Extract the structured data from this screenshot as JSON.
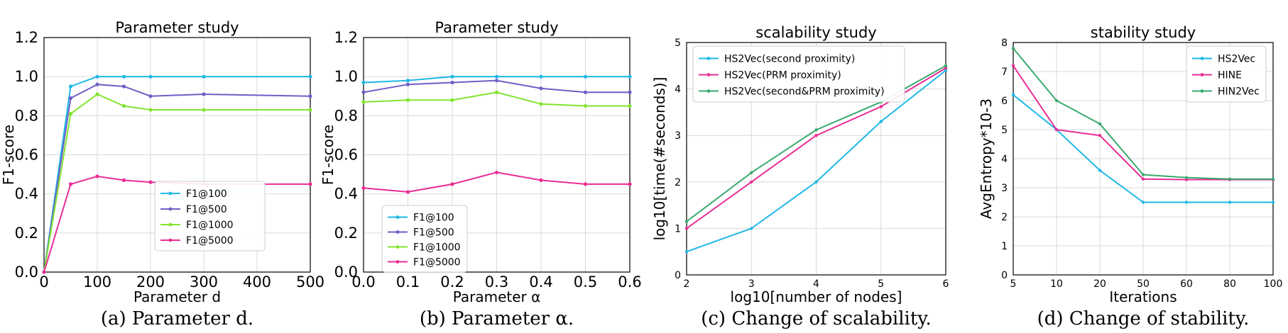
{
  "chart_data": [
    {
      "type": "line",
      "title": "Parameter  study",
      "xlabel": "Parameter d",
      "ylabel": "F1-score",
      "caption": "(a)  Parameter d.",
      "x": [
        0,
        50,
        100,
        150,
        200,
        300,
        500
      ],
      "xticks": [
        "0",
        "100",
        "200",
        "300",
        "400",
        "500"
      ],
      "xtick_values": [
        0,
        100,
        200,
        300,
        400,
        500
      ],
      "yticks": [
        "0.0",
        "0.2",
        "0.4",
        "0.6",
        "0.8",
        "1.0",
        "1.2"
      ],
      "yrange": [
        0,
        1.2
      ],
      "xrange": [
        0,
        500
      ],
      "log_y": false,
      "legend": "lower-center",
      "series": [
        {
          "name": "F1@100",
          "color": "#1fb8e6",
          "values": [
            0.0,
            0.95,
            1.0,
            1.0,
            1.0,
            1.0,
            1.0
          ]
        },
        {
          "name": "F1@500",
          "color": "#6f5fc7",
          "values": [
            0.0,
            0.89,
            0.96,
            0.95,
            0.9,
            0.91,
            0.9
          ]
        },
        {
          "name": "F1@1000",
          "color": "#80e52e",
          "values": [
            0.0,
            0.81,
            0.91,
            0.85,
            0.83,
            0.83,
            0.83
          ]
        },
        {
          "name": "F1@5000",
          "color": "#ea2d95",
          "values": [
            0.0,
            0.45,
            0.49,
            0.47,
            0.46,
            0.45,
            0.45
          ]
        }
      ]
    },
    {
      "type": "line",
      "title": "Parameter  study",
      "xlabel": "Parameter α",
      "ylabel": "F1-score",
      "caption": "(b)  Parameter α.",
      "x": [
        0.0,
        0.1,
        0.2,
        0.3,
        0.4,
        0.5,
        0.6
      ],
      "xticks": [
        "0.0",
        "0.1",
        "0.2",
        "0.3",
        "0.4",
        "0.5",
        "0.6"
      ],
      "xtick_values": [
        0.0,
        0.1,
        0.2,
        0.3,
        0.4,
        0.5,
        0.6
      ],
      "yticks": [
        "0.0",
        "0.2",
        "0.4",
        "0.6",
        "0.8",
        "1.0",
        "1.2"
      ],
      "yrange": [
        0,
        1.2
      ],
      "xrange": [
        0,
        0.6
      ],
      "log_y": false,
      "legend": "lower-left",
      "series": [
        {
          "name": "F1@100",
          "color": "#1fb8e6",
          "values": [
            0.97,
            0.98,
            1.0,
            1.0,
            1.0,
            1.0,
            1.0
          ]
        },
        {
          "name": "F1@500",
          "color": "#6f5fc7",
          "values": [
            0.92,
            0.96,
            0.97,
            0.98,
            0.94,
            0.92,
            0.92
          ]
        },
        {
          "name": "F1@1000",
          "color": "#80e52e",
          "values": [
            0.87,
            0.88,
            0.88,
            0.92,
            0.86,
            0.85,
            0.85
          ]
        },
        {
          "name": "F1@5000",
          "color": "#ea2d95",
          "values": [
            0.43,
            0.41,
            0.45,
            0.51,
            0.47,
            0.45,
            0.45
          ]
        }
      ]
    },
    {
      "type": "line",
      "title": "scalability study",
      "xlabel": "log10[number of nodes]",
      "ylabel": "log10[time(#seconds)]",
      "caption": "(c)  Change of scalability.",
      "x": [
        2,
        3,
        4,
        5,
        6
      ],
      "xticks": [
        "2",
        "3",
        "4",
        "5",
        "6"
      ],
      "xtick_values": [
        2,
        3,
        4,
        5,
        6
      ],
      "yticks": [
        "0",
        "1",
        "2",
        "3",
        "4",
        "5"
      ],
      "yrange": [
        0,
        5
      ],
      "xrange": [
        2,
        6
      ],
      "log_y": false,
      "legend": "upper-left",
      "series": [
        {
          "name": "HS2Vec(second proximity)",
          "color": "#1fb8e6",
          "values": [
            0.5,
            1.0,
            2.0,
            3.3,
            4.4
          ]
        },
        {
          "name": "HS2Vec(PRM proximity)",
          "color": "#ea2d95",
          "values": [
            1.0,
            2.0,
            3.0,
            3.62,
            4.45
          ]
        },
        {
          "name": "HS2Vec(second&PRM proximity)",
          "color": "#3aaa6e",
          "values": [
            1.15,
            2.2,
            3.12,
            3.72,
            4.5
          ]
        }
      ]
    },
    {
      "type": "line",
      "title": "stability study",
      "xlabel": "Iterations",
      "ylabel": "AvgEntropy*10-3",
      "caption": "(d)  Change of stability.",
      "x": [
        "5",
        "10",
        "20",
        "50",
        "60",
        "80",
        "100"
      ],
      "xticks": [
        "5",
        "10",
        "20",
        "50",
        "60",
        "80",
        "100"
      ],
      "yticks": [
        "0",
        "1",
        "2",
        "3",
        "4",
        "5",
        "6",
        "7",
        "8"
      ],
      "yrange": [
        0,
        8
      ],
      "log_y": false,
      "legend": "upper-right",
      "series": [
        {
          "name": "HS2Vec",
          "color": "#1fb8e6",
          "values": [
            6.2,
            5.0,
            3.6,
            2.5,
            2.5,
            2.5,
            2.5
          ]
        },
        {
          "name": "HINE",
          "color": "#ea2d95",
          "values": [
            7.2,
            5.0,
            4.8,
            3.3,
            3.28,
            3.28,
            3.28
          ]
        },
        {
          "name": "HIN2Vec",
          "color": "#3aaa6e",
          "values": [
            7.8,
            6.0,
            5.2,
            3.45,
            3.35,
            3.3,
            3.3
          ]
        }
      ]
    }
  ]
}
